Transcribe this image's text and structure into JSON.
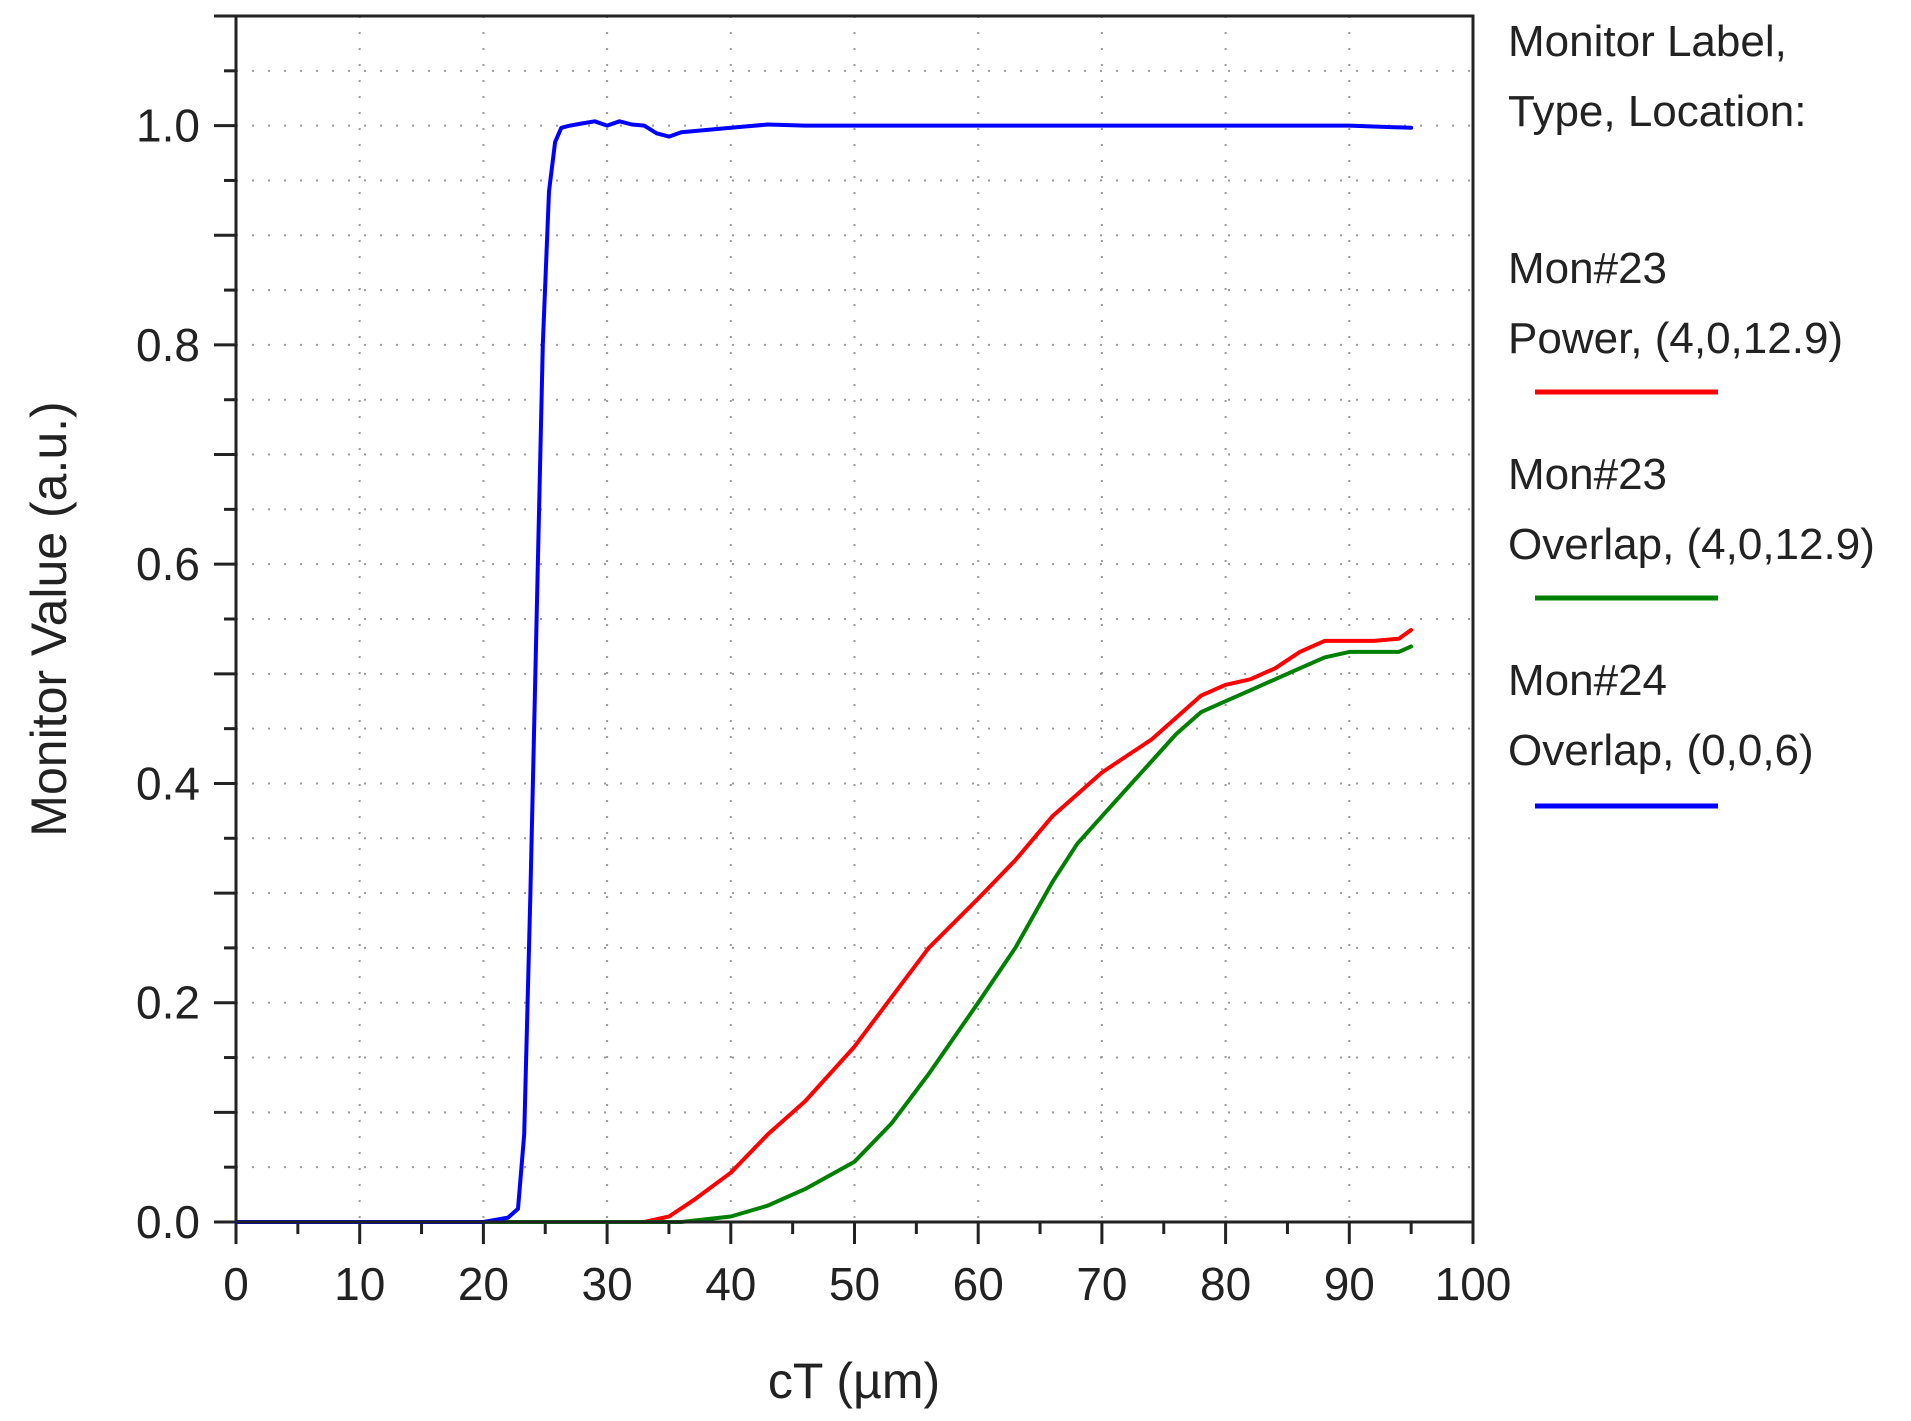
{
  "chart_data": {
    "type": "line",
    "xlabel": "cT (µm)",
    "ylabel": "Monitor Value (a.u.)",
    "xlim": [
      0,
      100
    ],
    "ylim": [
      0,
      1.1
    ],
    "x_ticks": [
      0,
      10,
      20,
      30,
      40,
      50,
      60,
      70,
      80,
      90,
      100
    ],
    "y_ticks": [
      0.0,
      0.2,
      0.4,
      0.6,
      0.8,
      1.0
    ],
    "x_tick_labels": [
      "0",
      "10",
      "20",
      "30",
      "40",
      "50",
      "60",
      "70",
      "80",
      "90",
      "100"
    ],
    "y_tick_labels": [
      "0.0",
      "0.2",
      "0.4",
      "0.6",
      "0.8",
      "1.0"
    ],
    "grid": true,
    "legend": {
      "placement": "right",
      "title_lines": [
        "Monitor Label,",
        "Type, Location:"
      ]
    },
    "series": [
      {
        "name": "Mon#23",
        "desc": "Power, (4,0,12.9)",
        "color": "#ff0000",
        "x": [
          0,
          20,
          30,
          33,
          35,
          37,
          40,
          43,
          46,
          50,
          53,
          56,
          60,
          63,
          66,
          68,
          70,
          72,
          74,
          76,
          78,
          80,
          82,
          84,
          86,
          88,
          90,
          92,
          94,
          95
        ],
        "y": [
          0,
          0,
          0,
          0.0,
          0.005,
          0.02,
          0.045,
          0.08,
          0.11,
          0.16,
          0.205,
          0.25,
          0.295,
          0.33,
          0.37,
          0.39,
          0.41,
          0.425,
          0.44,
          0.46,
          0.48,
          0.49,
          0.495,
          0.505,
          0.52,
          0.53,
          0.53,
          0.53,
          0.532,
          0.54
        ]
      },
      {
        "name": "Mon#23",
        "desc": "Overlap, (4,0,12.9)",
        "color": "#008000",
        "x": [
          0,
          20,
          30,
          36,
          40,
          43,
          46,
          50,
          53,
          56,
          60,
          63,
          66,
          68,
          70,
          72,
          74,
          76,
          78,
          80,
          82,
          84,
          86,
          88,
          90,
          92,
          94,
          95
        ],
        "y": [
          0,
          0,
          0,
          0.0,
          0.005,
          0.015,
          0.03,
          0.055,
          0.09,
          0.135,
          0.2,
          0.25,
          0.31,
          0.345,
          0.37,
          0.395,
          0.42,
          0.445,
          0.465,
          0.475,
          0.485,
          0.495,
          0.505,
          0.515,
          0.52,
          0.52,
          0.52,
          0.525
        ]
      },
      {
        "name": "Mon#24",
        "desc": "Overlap, (0,0,6)",
        "color": "#0000ff",
        "x": [
          0,
          10,
          20,
          22,
          22.8,
          23.3,
          23.8,
          24.3,
          24.8,
          25.3,
          25.8,
          26.3,
          27,
          28,
          29,
          30,
          31,
          32,
          33,
          34,
          35,
          36,
          38,
          40,
          43,
          46,
          50,
          60,
          70,
          80,
          90,
          95
        ],
        "y": [
          0,
          0,
          0,
          0.004,
          0.012,
          0.08,
          0.3,
          0.55,
          0.8,
          0.94,
          0.985,
          0.998,
          1.0,
          1.002,
          1.004,
          1.0,
          1.004,
          1.001,
          1.0,
          0.993,
          0.99,
          0.994,
          0.996,
          0.998,
          1.001,
          1.0,
          1.0,
          1.0,
          1.0,
          1.0,
          1.0,
          0.998
        ]
      }
    ]
  }
}
